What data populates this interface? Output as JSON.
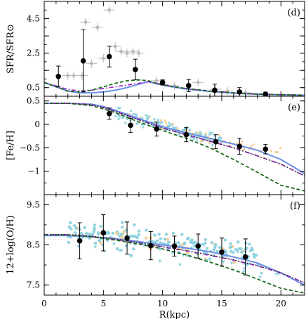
{
  "colors": {
    "model_solid": "#6b8fe6",
    "model_dashdot": "#9b2fc7",
    "model_dashed": "#1d6b1d",
    "model_dotted": "#222222",
    "obs_points": "#000000",
    "scatter_cyan": "#8fd3df",
    "scatter_orange": "#f5cf98",
    "scatter_grey": "#b8b8b8"
  },
  "chart_data": [
    {
      "type": "line",
      "panel_label": "(d)",
      "ylabel": "SFR/SFR⊙",
      "xlim": [
        0,
        22
      ],
      "ylim": [
        0,
        5.5
      ],
      "yticks": [
        0.5,
        1.5,
        2.5,
        3.5,
        4.5
      ],
      "ytick_labels": [
        "0.5",
        "",
        "2.5",
        "",
        "4.5"
      ],
      "observations": [
        {
          "x": 1.2,
          "y": 1.15,
          "yerr": 0.6
        },
        {
          "x": 3.3,
          "y": 2.05,
          "yerr": 1.8
        },
        {
          "x": 5.5,
          "y": 2.3,
          "yerr": 0.6
        },
        {
          "x": 7.7,
          "y": 1.55,
          "yerr": 0.6
        },
        {
          "x": 10.0,
          "y": 0.8,
          "yerr": 0.15
        },
        {
          "x": 12.2,
          "y": 0.62,
          "yerr": 0.35
        },
        {
          "x": 14.4,
          "y": 0.35,
          "yerr": 0.35
        },
        {
          "x": 16.5,
          "y": 0.25,
          "yerr": 0.25
        },
        {
          "x": 18.7,
          "y": 0.12,
          "yerr": 0.12
        }
      ],
      "grey_points": [
        {
          "x": 2.0,
          "y": 1.2
        },
        {
          "x": 2.5,
          "y": 1.2
        },
        {
          "x": 3.2,
          "y": 1.2
        },
        {
          "x": 4.0,
          "y": 1.9
        },
        {
          "x": 4.5,
          "y": 4.0
        },
        {
          "x": 5.0,
          "y": 2.2
        },
        {
          "x": 5.5,
          "y": 5.0
        },
        {
          "x": 6.0,
          "y": 2.9
        },
        {
          "x": 6.5,
          "y": 2.6
        },
        {
          "x": 7.0,
          "y": 2.5
        },
        {
          "x": 7.5,
          "y": 2.6
        },
        {
          "x": 8.0,
          "y": 2.5
        },
        {
          "x": 3.5,
          "y": 4.3
        },
        {
          "x": 9.5,
          "y": 0.9
        },
        {
          "x": 11.0,
          "y": 0.6
        },
        {
          "x": 13.0,
          "y": 0.8
        },
        {
          "x": 14.5,
          "y": 0.4
        },
        {
          "x": 15.5,
          "y": 0.3
        },
        {
          "x": 17.0,
          "y": 0.2
        }
      ],
      "series": [
        {
          "style": "solid",
          "x": [
            0,
            1,
            2,
            3,
            4,
            5,
            6,
            7,
            8,
            8.8,
            9.5,
            10.5,
            12,
            14,
            16,
            18,
            20,
            22
          ],
          "y": [
            0.8,
            0.55,
            0.3,
            0.2,
            0.2,
            0.25,
            0.35,
            0.5,
            0.7,
            0.85,
            0.72,
            0.58,
            0.42,
            0.28,
            0.18,
            0.12,
            0.08,
            0.06
          ]
        },
        {
          "style": "dashdot",
          "x": [
            0,
            1,
            2,
            3,
            4,
            5,
            6,
            7,
            8,
            8.8,
            9.5,
            10.5,
            12,
            14,
            16,
            18,
            20,
            22
          ],
          "y": [
            0.8,
            0.6,
            0.4,
            0.3,
            0.35,
            0.45,
            0.55,
            0.65,
            0.75,
            0.85,
            0.75,
            0.62,
            0.45,
            0.3,
            0.2,
            0.13,
            0.09,
            0.06
          ]
        },
        {
          "style": "dashed",
          "x": [
            0,
            1,
            2,
            3,
            4,
            5,
            6,
            7,
            8,
            8.8,
            9.5,
            10.5,
            12,
            14,
            16,
            18,
            20,
            22
          ],
          "y": [
            0.8,
            0.55,
            0.3,
            0.25,
            0.35,
            0.55,
            0.75,
            0.9,
            0.95,
            0.9,
            0.75,
            0.6,
            0.45,
            0.3,
            0.2,
            0.13,
            0.09,
            0.06
          ]
        }
      ]
    },
    {
      "type": "line",
      "panel_label": "(e)",
      "ylabel": "[Fe/H]",
      "xlim": [
        0,
        22
      ],
      "ylim": [
        -1.5,
        0.6
      ],
      "yticks": [
        0.5,
        0,
        -0.5,
        -1
      ],
      "ytick_labels": [
        "0.5",
        "0",
        "−0.5",
        "−1"
      ],
      "observations": [
        {
          "x": 5.5,
          "y": 0.23,
          "yerr": 0.12
        },
        {
          "x": 7.3,
          "y": -0.02,
          "yerr": 0.15
        },
        {
          "x": 9.5,
          "y": -0.1,
          "yerr": 0.15
        },
        {
          "x": 12.0,
          "y": -0.22,
          "yerr": 0.15
        },
        {
          "x": 14.5,
          "y": -0.37,
          "yerr": 0.15
        },
        {
          "x": 16.5,
          "y": -0.47,
          "yerr": 0.17
        },
        {
          "x": 18.7,
          "y": -0.53,
          "yerr": 0.1
        }
      ],
      "series": [
        {
          "style": "solid",
          "x": [
            0,
            2,
            4,
            5,
            6,
            8,
            10,
            12,
            14,
            16,
            18,
            20,
            22
          ],
          "y": [
            0.45,
            0.45,
            0.43,
            0.38,
            0.3,
            0.12,
            -0.05,
            -0.18,
            -0.3,
            -0.42,
            -0.55,
            -0.75,
            -1.05
          ]
        },
        {
          "style": "dashdot",
          "x": [
            0,
            2,
            4,
            5,
            6,
            8,
            10,
            12,
            14,
            16,
            18,
            20,
            22
          ],
          "y": [
            0.45,
            0.45,
            0.42,
            0.36,
            0.28,
            0.1,
            -0.08,
            -0.22,
            -0.36,
            -0.5,
            -0.67,
            -0.85,
            -1.1
          ]
        },
        {
          "style": "dashed",
          "x": [
            0,
            2,
            4,
            5,
            6,
            8,
            10,
            12,
            14,
            16,
            18,
            20,
            22
          ],
          "y": [
            0.45,
            0.45,
            0.4,
            0.33,
            0.25,
            0.05,
            -0.13,
            -0.3,
            -0.5,
            -0.75,
            -1.02,
            -1.3,
            -1.42
          ]
        },
        {
          "style": "dotted",
          "x": [
            0,
            2,
            4,
            5,
            6,
            8,
            10,
            12,
            14,
            16,
            18,
            20,
            22
          ],
          "y": [
            0.45,
            0.45,
            0.42,
            0.36,
            0.28,
            0.1,
            -0.08,
            -0.22,
            -0.36,
            -0.5,
            -0.67,
            -0.85,
            -1.1
          ]
        }
      ]
    },
    {
      "type": "line",
      "panel_label": "(f)",
      "ylabel": "12+log(O/H)",
      "xlabel": "R(kpc)",
      "xlim": [
        0,
        22
      ],
      "ylim": [
        7.25,
        9.75
      ],
      "xticks": [
        0,
        5,
        10,
        15,
        20
      ],
      "xtick_labels": [
        "0",
        "5",
        "10",
        "15",
        "20"
      ],
      "yticks": [
        7.5,
        8.5,
        9.5
      ],
      "ytick_labels": [
        "7.5",
        "8.5",
        "9.5"
      ],
      "observations": [
        {
          "x": 3.0,
          "y": 8.6,
          "yerr": 0.45
        },
        {
          "x": 5.0,
          "y": 8.8,
          "yerr": 0.45
        },
        {
          "x": 7.0,
          "y": 8.67,
          "yerr": 0.4
        },
        {
          "x": 9.0,
          "y": 8.48,
          "yerr": 0.35
        },
        {
          "x": 11.0,
          "y": 8.47,
          "yerr": 0.25
        },
        {
          "x": 13.0,
          "y": 8.47,
          "yerr": 0.3
        },
        {
          "x": 15.0,
          "y": 8.32,
          "yerr": 0.35
        },
        {
          "x": 17.0,
          "y": 8.2,
          "yerr": 0.45
        }
      ],
      "series": [
        {
          "style": "solid",
          "x": [
            0,
            2,
            4,
            6,
            8,
            10,
            12,
            14,
            16,
            18,
            20,
            22
          ],
          "y": [
            8.73,
            8.73,
            8.7,
            8.65,
            8.58,
            8.5,
            8.42,
            8.33,
            8.2,
            8.05,
            7.8,
            7.5
          ]
        },
        {
          "style": "dashdot",
          "x": [
            0,
            2,
            4,
            6,
            8,
            10,
            12,
            14,
            16,
            18,
            20,
            22
          ],
          "y": [
            8.75,
            8.75,
            8.71,
            8.64,
            8.55,
            8.45,
            8.35,
            8.24,
            8.12,
            7.98,
            7.8,
            7.55
          ]
        },
        {
          "style": "dashed",
          "x": [
            0,
            2,
            4,
            6,
            8,
            10,
            12,
            14,
            16,
            18,
            20,
            22
          ],
          "y": [
            8.75,
            8.75,
            8.7,
            8.62,
            8.52,
            8.4,
            8.25,
            8.07,
            7.88,
            7.65,
            7.42,
            7.3
          ]
        },
        {
          "style": "dotted",
          "x": [
            0,
            2,
            4,
            6,
            8,
            10,
            12,
            14,
            16,
            18,
            20,
            22
          ],
          "y": [
            8.76,
            8.76,
            8.72,
            8.65,
            8.56,
            8.46,
            8.36,
            8.25,
            8.13,
            7.99,
            7.81,
            7.56
          ]
        }
      ]
    }
  ]
}
